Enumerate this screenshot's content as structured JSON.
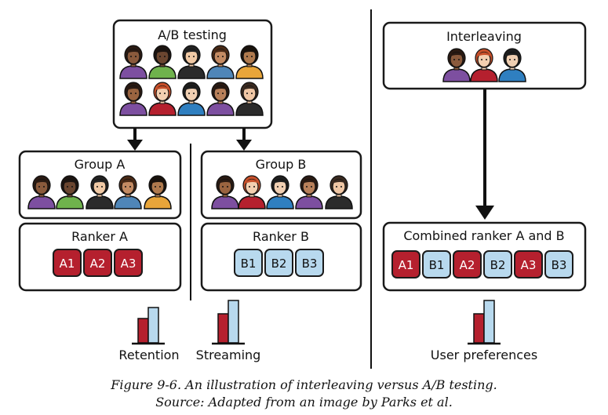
{
  "ab": {
    "title": "A/B testing",
    "group_a": "Group A",
    "group_b": "Group B",
    "ranker_a": "Ranker A",
    "ranker_b": "Ranker B",
    "ranker_a_items": [
      "A1",
      "A2",
      "A3"
    ],
    "ranker_b_items": [
      "B1",
      "B2",
      "B3"
    ],
    "metric_retention": "Retention",
    "metric_streaming": "Streaming"
  },
  "interleaving": {
    "title": "Interleaving",
    "combined": "Combined ranker A and B",
    "combined_items": [
      "A1",
      "B1",
      "A2",
      "B2",
      "A3",
      "B3"
    ],
    "metric_preferences": "User preferences"
  },
  "caption": {
    "line1": "Figure 9-6. An illustration of interleaving versus A/B testing.",
    "line2": "Source: Adapted from an image by Parks et al."
  },
  "colors": {
    "a_fill": "#b5202e",
    "b_fill": "#b8d9ee",
    "border": "#1a1a1a"
  },
  "icons": [
    "people-icon",
    "bar-chart-icon",
    "arrow-down-icon"
  ]
}
